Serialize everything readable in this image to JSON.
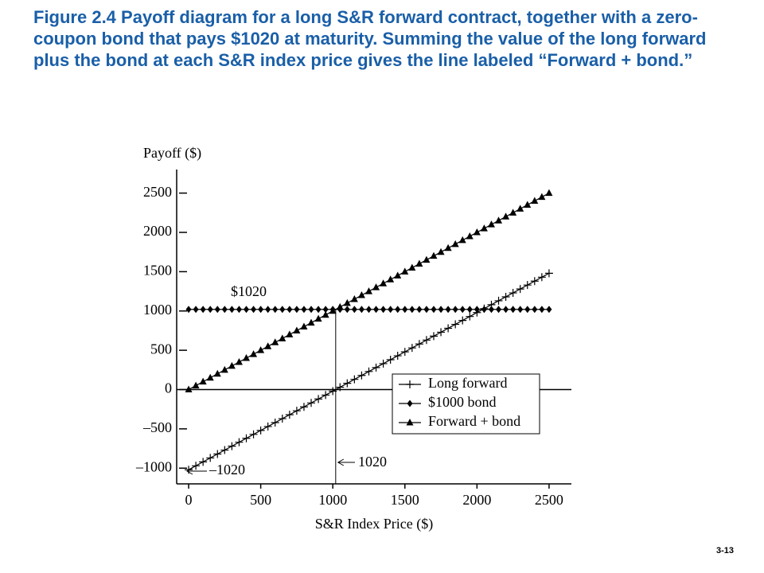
{
  "slide": {
    "title": "Figure 2.4  Payoff diagram for a long S&R forward contract, together with a zero-coupon bond that pays $1020 at maturity. Summing the value of the long forward plus the bond at each S&R index price gives the line labeled “Forward + bond.”",
    "page_number": "3-13"
  },
  "chart_data": {
    "type": "line",
    "y_label": "Payoff ($)",
    "x_label": "S&R Index Price ($)",
    "annotations": [
      "$1020",
      "–1020",
      "1020"
    ],
    "x": [
      0,
      50,
      100,
      150,
      200,
      250,
      300,
      350,
      400,
      450,
      500,
      550,
      600,
      650,
      700,
      750,
      800,
      850,
      900,
      950,
      1000,
      1050,
      1100,
      1150,
      1200,
      1250,
      1300,
      1350,
      1400,
      1450,
      1500,
      1550,
      1600,
      1650,
      1700,
      1750,
      1800,
      1850,
      1900,
      1950,
      2000,
      2050,
      2100,
      2150,
      2200,
      2250,
      2300,
      2350,
      2400,
      2450,
      2500
    ],
    "series": [
      {
        "name": "Long forward",
        "color": "#000000",
        "marker": "plus",
        "values": [
          -1020,
          -970,
          -920,
          -870,
          -820,
          -770,
          -720,
          -670,
          -620,
          -570,
          -520,
          -470,
          -420,
          -370,
          -320,
          -270,
          -220,
          -170,
          -120,
          -70,
          -20,
          30,
          80,
          130,
          180,
          230,
          280,
          330,
          380,
          430,
          480,
          530,
          580,
          630,
          680,
          730,
          780,
          830,
          880,
          930,
          980,
          1030,
          1080,
          1130,
          1180,
          1230,
          1280,
          1330,
          1380,
          1430,
          1480
        ]
      },
      {
        "name": "$1000 bond",
        "color": "#000000",
        "marker": "diamond",
        "values": [
          1020,
          1020,
          1020,
          1020,
          1020,
          1020,
          1020,
          1020,
          1020,
          1020,
          1020,
          1020,
          1020,
          1020,
          1020,
          1020,
          1020,
          1020,
          1020,
          1020,
          1020,
          1020,
          1020,
          1020,
          1020,
          1020,
          1020,
          1020,
          1020,
          1020,
          1020,
          1020,
          1020,
          1020,
          1020,
          1020,
          1020,
          1020,
          1020,
          1020,
          1020,
          1020,
          1020,
          1020,
          1020,
          1020,
          1020,
          1020,
          1020,
          1020,
          1020
        ]
      },
      {
        "name": "Forward + bond",
        "color": "#000000",
        "marker": "triangle",
        "values": [
          0,
          50,
          100,
          150,
          200,
          250,
          300,
          350,
          400,
          450,
          500,
          550,
          600,
          650,
          700,
          750,
          800,
          850,
          900,
          950,
          1000,
          1050,
          1100,
          1150,
          1200,
          1250,
          1300,
          1350,
          1400,
          1450,
          1500,
          1550,
          1600,
          1650,
          1700,
          1750,
          1800,
          1850,
          1900,
          1950,
          2000,
          2050,
          2100,
          2150,
          2200,
          2250,
          2300,
          2350,
          2400,
          2450,
          2500
        ]
      }
    ],
    "xlim": [
      -83,
      2655
    ],
    "xticks": [
      0,
      500,
      1000,
      1500,
      2000,
      2500
    ],
    "ylim": [
      -1200,
      2800
    ],
    "yticks": [
      {
        "value": -1000,
        "label": "–1000"
      },
      {
        "value": -500,
        "label": "–500"
      },
      0,
      500,
      1000,
      1500,
      2000,
      2500
    ],
    "legend": "lower right",
    "grid": false
  }
}
